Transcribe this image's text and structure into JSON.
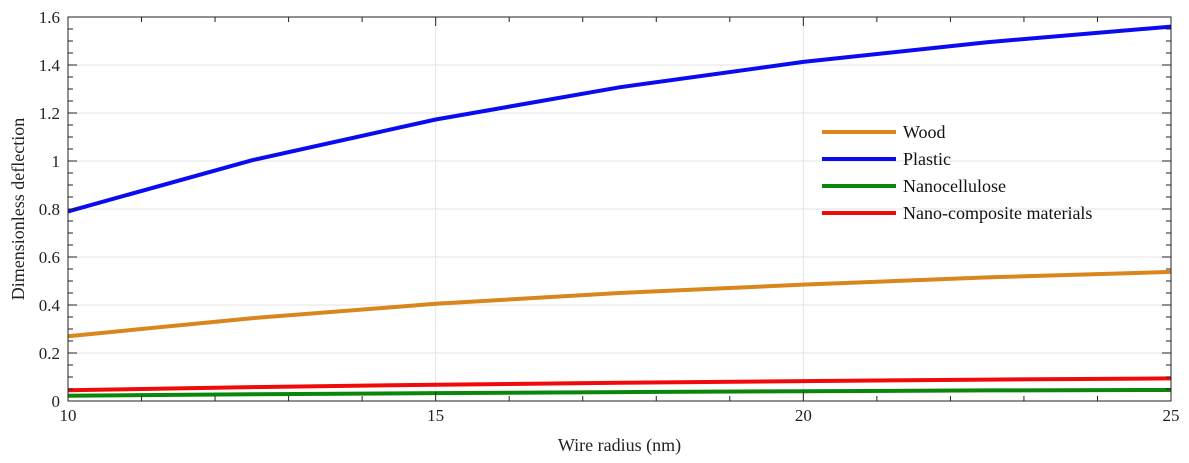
{
  "chart_data": {
    "type": "line",
    "xlabel": "Wire radius (nm)",
    "ylabel": "Dimensionless deflection",
    "xlim": [
      10,
      25
    ],
    "ylim": [
      0,
      1.6
    ],
    "xticks": [
      10,
      15,
      20,
      25
    ],
    "yticks": [
      0,
      0.2,
      0.4,
      0.6,
      0.8,
      1,
      1.2,
      1.4,
      1.6
    ],
    "xtick_labels": [
      "10",
      "15",
      "20",
      "25"
    ],
    "ytick_labels": [
      "0",
      "0.2",
      "0.4",
      "0.6",
      "0.8",
      "1",
      "1.2",
      "1.4",
      "1.6"
    ],
    "grid": true,
    "legend_position": "right",
    "series": [
      {
        "name": "Wood",
        "color": "#D9861C",
        "x": [
          10,
          12.5,
          15,
          17.5,
          20,
          22.5,
          25
        ],
        "y": [
          0.27,
          0.345,
          0.405,
          0.45,
          0.485,
          0.515,
          0.538
        ]
      },
      {
        "name": "Plastic",
        "color": "#0B0BF0",
        "x": [
          10,
          12.5,
          15,
          17.5,
          20,
          22.5,
          25
        ],
        "y": [
          0.79,
          1.003,
          1.173,
          1.307,
          1.413,
          1.495,
          1.56
        ]
      },
      {
        "name": "Nanocellulose",
        "color": "#0A870A",
        "x": [
          10,
          12.5,
          15,
          17.5,
          20,
          22.5,
          25
        ],
        "y": [
          0.022,
          0.028,
          0.033,
          0.037,
          0.041,
          0.044,
          0.046
        ]
      },
      {
        "name": "Nano-composite materials",
        "color": "#F00A0A",
        "x": [
          10,
          12.5,
          15,
          17.5,
          20,
          22.5,
          25
        ],
        "y": [
          0.045,
          0.058,
          0.068,
          0.076,
          0.083,
          0.089,
          0.094
        ]
      }
    ]
  }
}
